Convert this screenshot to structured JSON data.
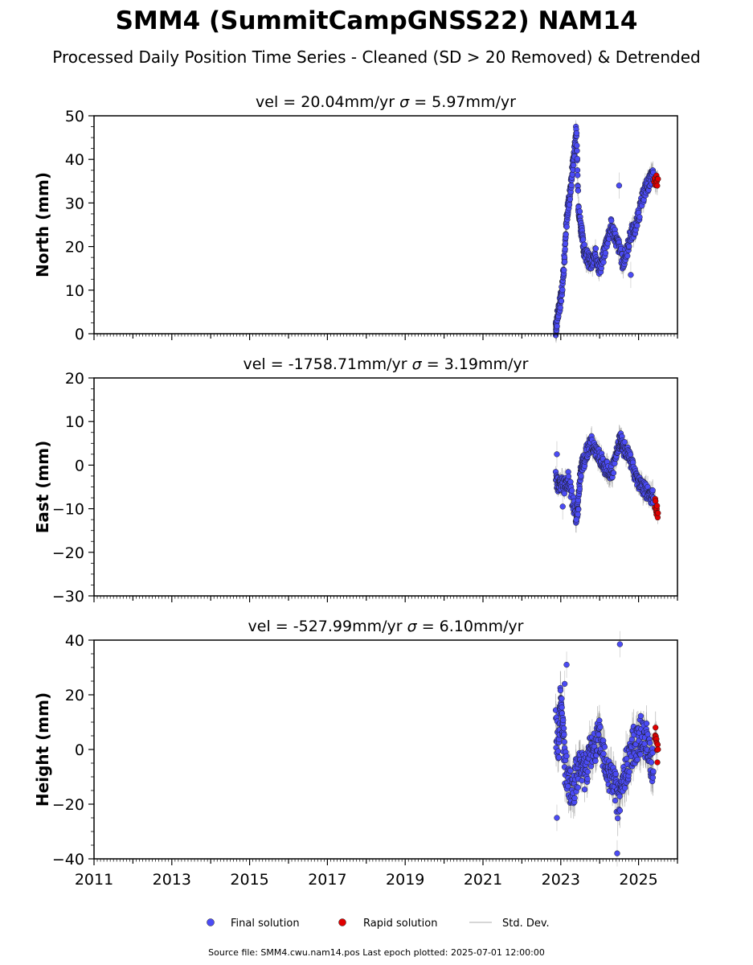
{
  "figure": {
    "title": "SMM4 (SummitCampGNSS22) NAM14",
    "subtitle": "Processed Daily Position Time Series - Cleaned (SD > 20 Removed) & Detrended",
    "source_note": "Source file: SMM4.cwu.nam14.pos  Last epoch plotted: 2025-07-01 12:00:00"
  },
  "legend": {
    "placement": "bottom-center",
    "items": [
      {
        "label": "Final solution",
        "color": "#4b4bf5",
        "marker": "circle"
      },
      {
        "label": "Rapid solution",
        "color": "#e00000",
        "marker": "circle"
      },
      {
        "label": "Std. Dev.",
        "color": "#c8c8c8",
        "marker": "line"
      }
    ]
  },
  "colors": {
    "final": "#4b4bf5",
    "rapid": "#e00000",
    "errorbar": "#8a8a8a",
    "stddev_legend": "#c8c8c8",
    "marker_edge": "#1a1a1a"
  },
  "chart_data": [
    {
      "type": "scatter",
      "title_text": "vel = 20.04mm/yr   ",
      "sigma_text": " = 5.97mm/yr",
      "ylabel": "North (mm)",
      "ylim": [
        0,
        50
      ],
      "yticks": [
        0,
        10,
        20,
        30,
        40,
        50
      ],
      "xlim": [
        2011.0,
        2026.0
      ],
      "xticks": [
        2011,
        2013,
        2015,
        2017,
        2019,
        2021,
        2023,
        2025
      ],
      "show_xtick_labels": false,
      "series": [
        {
          "kind": "final",
          "points": [
            [
              2022.87,
              1
            ],
            [
              2022.9,
              3
            ],
            [
              2022.95,
              5.5
            ],
            [
              2023.0,
              8
            ],
            [
              2023.05,
              12
            ],
            [
              2023.1,
              18
            ],
            [
              2023.15,
              26
            ],
            [
              2023.2,
              30
            ],
            [
              2023.25,
              33
            ],
            [
              2023.3,
              38
            ],
            [
              2023.35,
              42
            ],
            [
              2023.4,
              47
            ],
            [
              2023.45,
              30
            ],
            [
              2023.5,
              26
            ],
            [
              2023.55,
              22
            ],
            [
              2023.6,
              19
            ],
            [
              2023.7,
              17
            ],
            [
              2023.8,
              16
            ],
            [
              2023.9,
              18
            ],
            [
              2024.0,
              15
            ],
            [
              2024.1,
              18
            ],
            [
              2024.2,
              22
            ],
            [
              2024.3,
              25
            ],
            [
              2024.4,
              22
            ],
            [
              2024.5,
              20
            ],
            [
              2024.6,
              16
            ],
            [
              2024.7,
              19
            ],
            [
              2024.8,
              23
            ],
            [
              2024.9,
              24
            ],
            [
              2025.0,
              27
            ],
            [
              2025.1,
              31
            ],
            [
              2025.2,
              34
            ],
            [
              2025.3,
              35
            ],
            [
              2025.38,
              37
            ]
          ]
        },
        {
          "kind": "rapid",
          "points": [
            [
              2025.4,
              34
            ],
            [
              2025.45,
              35
            ],
            [
              2025.5,
              35.5
            ]
          ]
        }
      ],
      "outliers": [
        [
          2024.5,
          34
        ],
        [
          2024.8,
          13.5
        ]
      ]
    },
    {
      "type": "scatter",
      "title_text": "vel = -1758.71mm/yr   ",
      "sigma_text": " = 3.19mm/yr",
      "ylabel": "East (mm)",
      "ylim": [
        -30,
        20
      ],
      "yticks": [
        -30,
        -20,
        -10,
        0,
        10,
        20
      ],
      "xlim": [
        2011.0,
        2026.0
      ],
      "xticks": [
        2011,
        2013,
        2015,
        2017,
        2019,
        2021,
        2023,
        2025
      ],
      "show_xtick_labels": false,
      "series": [
        {
          "kind": "final",
          "points": [
            [
              2022.87,
              -3
            ],
            [
              2022.95,
              -5
            ],
            [
              2023.0,
              -4
            ],
            [
              2023.1,
              -5
            ],
            [
              2023.2,
              -3
            ],
            [
              2023.3,
              -8
            ],
            [
              2023.4,
              -12
            ],
            [
              2023.45,
              -9
            ],
            [
              2023.5,
              -2
            ],
            [
              2023.55,
              0
            ],
            [
              2023.6,
              1
            ],
            [
              2023.7,
              4
            ],
            [
              2023.8,
              5
            ],
            [
              2023.9,
              3
            ],
            [
              2024.0,
              2
            ],
            [
              2024.1,
              0
            ],
            [
              2024.2,
              -1
            ],
            [
              2024.3,
              -2
            ],
            [
              2024.4,
              1
            ],
            [
              2024.5,
              5
            ],
            [
              2024.55,
              6
            ],
            [
              2024.6,
              4
            ],
            [
              2024.7,
              3
            ],
            [
              2024.8,
              1
            ],
            [
              2024.9,
              -2
            ],
            [
              2025.0,
              -4
            ],
            [
              2025.1,
              -5
            ],
            [
              2025.2,
              -6
            ],
            [
              2025.3,
              -7
            ],
            [
              2025.38,
              -7.5
            ]
          ]
        },
        {
          "kind": "rapid",
          "points": [
            [
              2025.42,
              -9
            ],
            [
              2025.46,
              -10
            ],
            [
              2025.5,
              -11
            ]
          ]
        }
      ],
      "outliers": [
        [
          2022.9,
          2.5
        ],
        [
          2023.05,
          -9.5
        ],
        [
          2023.4,
          -12.5
        ]
      ]
    },
    {
      "type": "scatter",
      "title_text": "vel = -527.99mm/yr   ",
      "sigma_text": " = 6.10mm/yr",
      "ylabel": "Height (mm)",
      "ylim": [
        -40,
        40
      ],
      "yticks": [
        -40,
        -20,
        0,
        20,
        40
      ],
      "xlim": [
        2011.0,
        2026.0
      ],
      "xticks": [
        2011,
        2013,
        2015,
        2017,
        2019,
        2021,
        2023,
        2025
      ],
      "xtick_labels": [
        "2011",
        "2013",
        "2015",
        "2017",
        "2019",
        "2021",
        "2023",
        "2025"
      ],
      "show_xtick_labels": true,
      "series": [
        {
          "kind": "final",
          "points": [
            [
              2022.87,
              8
            ],
            [
              2022.95,
              2
            ],
            [
              2023.0,
              20
            ],
            [
              2023.05,
              10
            ],
            [
              2023.1,
              -5
            ],
            [
              2023.2,
              -12
            ],
            [
              2023.3,
              -15
            ],
            [
              2023.4,
              -10
            ],
            [
              2023.5,
              -6
            ],
            [
              2023.6,
              -8
            ],
            [
              2023.7,
              -4
            ],
            [
              2023.8,
              0
            ],
            [
              2023.9,
              3
            ],
            [
              2024.0,
              4
            ],
            [
              2024.1,
              -2
            ],
            [
              2024.2,
              -6
            ],
            [
              2024.3,
              -10
            ],
            [
              2024.4,
              -15
            ],
            [
              2024.5,
              -20
            ],
            [
              2024.6,
              -12
            ],
            [
              2024.7,
              -6
            ],
            [
              2024.8,
              0
            ],
            [
              2024.9,
              2
            ],
            [
              2025.0,
              4
            ],
            [
              2025.1,
              6
            ],
            [
              2025.2,
              3
            ],
            [
              2025.3,
              -2
            ],
            [
              2025.38,
              -8
            ]
          ]
        },
        {
          "kind": "rapid",
          "points": [
            [
              2025.42,
              3
            ],
            [
              2025.46,
              1
            ],
            [
              2025.5,
              0
            ]
          ]
        }
      ],
      "outliers": [
        [
          2024.52,
          38.5
        ],
        [
          2024.45,
          -38
        ],
        [
          2022.9,
          -25
        ],
        [
          2023.15,
          31
        ],
        [
          2023.1,
          24
        ]
      ]
    }
  ]
}
